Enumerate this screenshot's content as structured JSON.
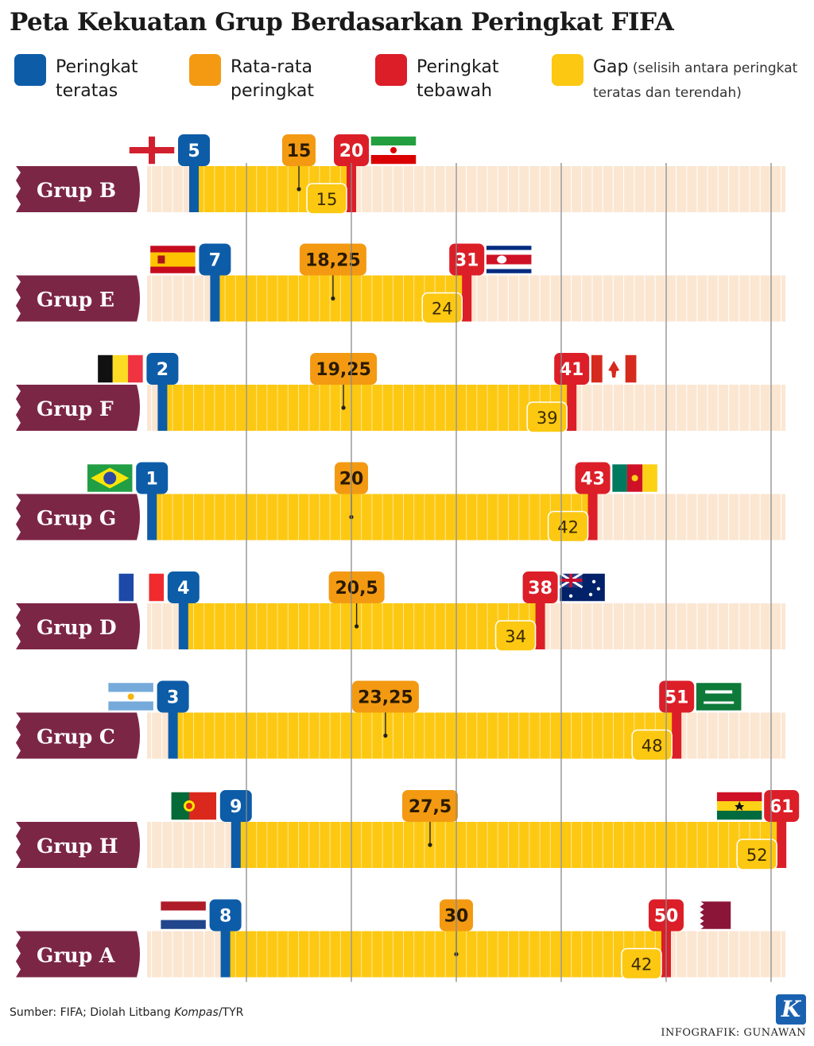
{
  "title": "Peta Kekuatan Grup Berdasarkan Peringkat FIFA",
  "legend": [
    {
      "line1": "Peringkat",
      "line2": "teratas",
      "note1": "",
      "note2": "",
      "color": "#0d5ca8"
    },
    {
      "line1": "Rata-rata",
      "line2": "peringkat",
      "note1": "",
      "note2": "",
      "color": "#f39a12"
    },
    {
      "line1": "Peringkat",
      "line2": "tebawah",
      "note1": "",
      "note2": "",
      "color": "#dc1e28"
    },
    {
      "line1": "Gap",
      "line2": "",
      "note1": " (selisih antara peringkat",
      "note2": "teratas dan terendah)",
      "color": "#fcc812"
    }
  ],
  "colors": {
    "top": "#0d5ca8",
    "avg": "#f39a12",
    "bottom": "#dc1e28",
    "gap": "#fcc812",
    "track": "#fbe6d2",
    "label_bg": "#7c2646"
  },
  "chart_data": {
    "type": "bar",
    "xlim": [
      0,
      61
    ],
    "grid": true,
    "groups": [
      {
        "name": "Grup B",
        "top": 5,
        "avg": 15,
        "bottom": 20,
        "gap": 15,
        "top_flag": "england-flag-icon",
        "bottom_flag": "iran-flag-icon"
      },
      {
        "name": "Grup E",
        "top": 7,
        "avg": 18.25,
        "bottom": 31,
        "gap": 24,
        "top_flag": "spain-flag-icon",
        "bottom_flag": "costa-rica-flag-icon"
      },
      {
        "name": "Grup F",
        "top": 2,
        "avg": 19.25,
        "bottom": 41,
        "gap": 39,
        "top_flag": "belgium-flag-icon",
        "bottom_flag": "canada-flag-icon"
      },
      {
        "name": "Grup G",
        "top": 1,
        "avg": 20,
        "bottom": 43,
        "gap": 42,
        "top_flag": "brazil-flag-icon",
        "bottom_flag": "cameroon-flag-icon"
      },
      {
        "name": "Grup D",
        "top": 4,
        "avg": 20.5,
        "bottom": 38,
        "gap": 34,
        "top_flag": "france-flag-icon",
        "bottom_flag": "australia-flag-icon"
      },
      {
        "name": "Grup C",
        "top": 3,
        "avg": 23.25,
        "bottom": 51,
        "gap": 48,
        "top_flag": "argentina-flag-icon",
        "bottom_flag": "saudi-arabia-flag-icon"
      },
      {
        "name": "Grup H",
        "top": 9,
        "avg": 27.5,
        "bottom": 61,
        "gap": 52,
        "top_flag": "portugal-flag-icon",
        "bottom_flag": "ghana-flag-icon"
      },
      {
        "name": "Grup A",
        "top": 8,
        "avg": 30,
        "bottom": 50,
        "gap": 42,
        "top_flag": "netherlands-flag-icon",
        "bottom_flag": "qatar-flag-icon"
      }
    ]
  },
  "source": {
    "prefix": "Sumber: FIFA; Diolah Litbang ",
    "italic": "Kompas",
    "suffix": "/TYR"
  },
  "credit": "INFOGRAFIK: GUNAWAN",
  "logo_letter": "K"
}
